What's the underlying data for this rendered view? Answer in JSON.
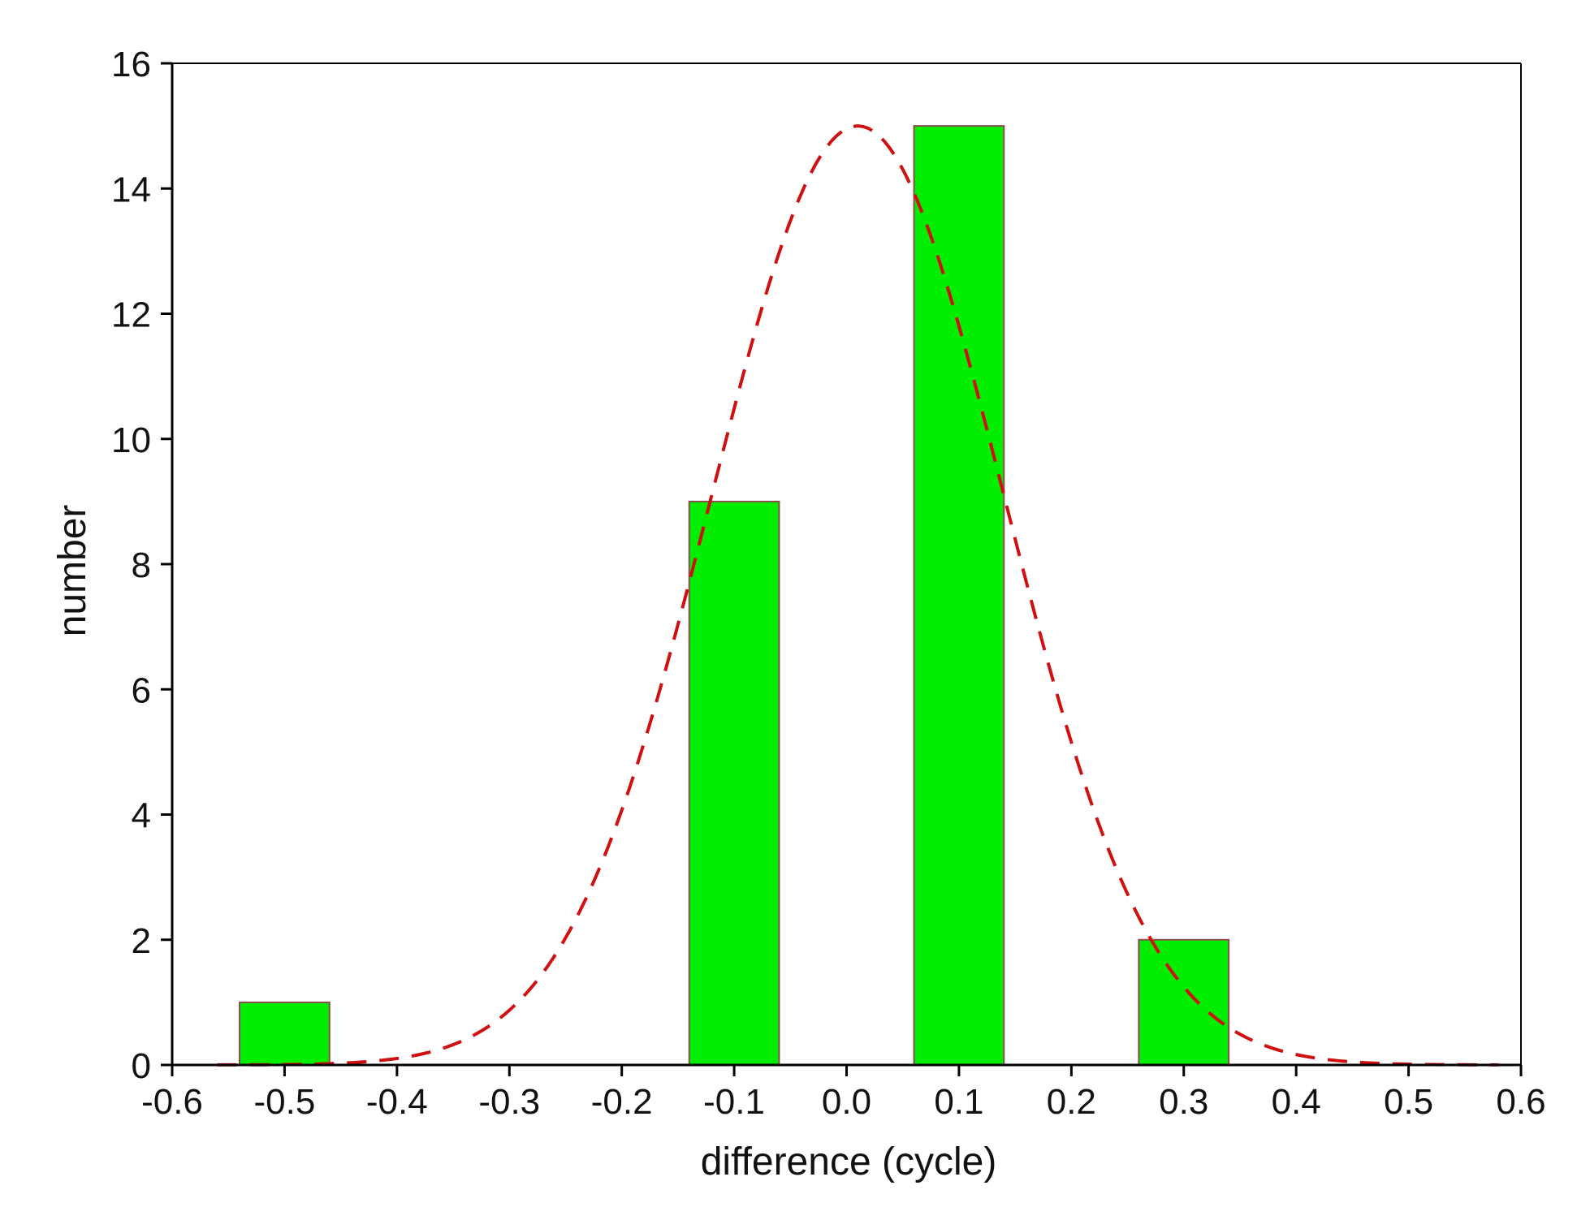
{
  "chart_data": {
    "type": "bar",
    "title": "",
    "xlabel": "difference (cycle)",
    "ylabel": "number",
    "xlim": [
      -0.6,
      0.6
    ],
    "ylim": [
      0,
      16
    ],
    "xticks": [
      -0.6,
      -0.5,
      -0.4,
      -0.3,
      -0.2,
      -0.1,
      0.0,
      0.1,
      0.2,
      0.3,
      0.4,
      0.5,
      0.6
    ],
    "xtick_labels": [
      "-0.6",
      "-0.5",
      "-0.4",
      "-0.3",
      "-0.2",
      "-0.1",
      "0.0",
      "0.1",
      "0.2",
      "0.3",
      "0.4",
      "0.5",
      "0.6"
    ],
    "yticks": [
      0,
      2,
      4,
      6,
      8,
      10,
      12,
      14,
      16
    ],
    "ytick_labels": [
      "0",
      "2",
      "4",
      "6",
      "8",
      "10",
      "12",
      "14",
      "16"
    ],
    "bar_width": 0.08,
    "bars": [
      {
        "x": -0.5,
        "value": 1
      },
      {
        "x": -0.1,
        "value": 9
      },
      {
        "x": 0.1,
        "value": 15
      },
      {
        "x": 0.3,
        "value": 2
      }
    ],
    "fit_curve": {
      "type": "gaussian",
      "style": "dashed",
      "amplitude": 15,
      "mean": 0.01,
      "sigma": 0.13,
      "x_range": [
        -0.56,
        0.58
      ]
    },
    "grid": false,
    "legend": "none",
    "colors": {
      "bar_fill": "#00ee00",
      "bar_edge": "#8b4c4c",
      "fit_line": "#d01010",
      "axis": "#000000"
    }
  }
}
